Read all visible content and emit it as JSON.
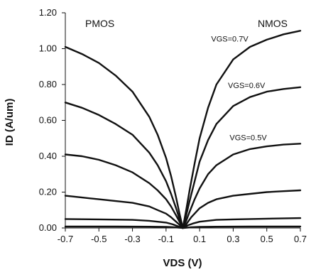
{
  "chart_data": {
    "type": "line",
    "title": "",
    "xlabel": "VDS (V)",
    "ylabel": "ID (A/um)",
    "xlim": [
      -0.7,
      0.7
    ],
    "ylim": [
      0,
      1.2
    ],
    "x_ticks": [
      "-0.7",
      "-0.5",
      "-0.3",
      "-0.1",
      "0.1",
      "0.3",
      "0.5",
      "0.7"
    ],
    "y_ticks": [
      "0.00",
      "0.20",
      "0.40",
      "0.60",
      "0.80",
      "1.00",
      "1.20"
    ],
    "grid": false,
    "corner_labels": {
      "left": "PMOS",
      "right": "NMOS"
    },
    "curve_labels": [
      {
        "text": "VGS=0.7V",
        "x": 0.39,
        "y": 1.04
      },
      {
        "text": "VGS=0.6V",
        "x": 0.49,
        "y": 0.78
      },
      {
        "text": "VGS=0.5V",
        "x": 0.5,
        "y": 0.49
      }
    ],
    "series": [
      {
        "x": [
          -0.7,
          -0.6,
          -0.5,
          -0.4,
          -0.3,
          -0.2,
          -0.15,
          -0.1,
          -0.07,
          -0.04,
          -0.02,
          0.0
        ],
        "values": [
          1.01,
          0.97,
          0.92,
          0.85,
          0.76,
          0.62,
          0.52,
          0.39,
          0.29,
          0.17,
          0.08,
          0.0
        ]
      },
      {
        "x": [
          -0.7,
          -0.6,
          -0.5,
          -0.4,
          -0.3,
          -0.2,
          -0.15,
          -0.1,
          -0.07,
          -0.04,
          -0.02,
          0.0
        ],
        "values": [
          0.7,
          0.67,
          0.63,
          0.58,
          0.52,
          0.42,
          0.35,
          0.26,
          0.19,
          0.11,
          0.05,
          0.0
        ]
      },
      {
        "x": [
          -0.7,
          -0.6,
          -0.5,
          -0.4,
          -0.3,
          -0.2,
          -0.15,
          -0.1,
          -0.07,
          -0.04,
          -0.02,
          0.0
        ],
        "values": [
          0.41,
          0.4,
          0.38,
          0.35,
          0.31,
          0.25,
          0.21,
          0.16,
          0.12,
          0.07,
          0.035,
          0.0
        ]
      },
      {
        "x": [
          -0.7,
          -0.6,
          -0.5,
          -0.4,
          -0.3,
          -0.2,
          -0.15,
          -0.1,
          -0.07,
          -0.04,
          -0.02,
          0.0
        ],
        "values": [
          0.18,
          0.17,
          0.16,
          0.15,
          0.14,
          0.12,
          0.1,
          0.08,
          0.06,
          0.035,
          0.018,
          0.0
        ]
      },
      {
        "x": [
          -0.7,
          -0.5,
          -0.3,
          -0.2,
          -0.1,
          -0.06,
          -0.03,
          0.0
        ],
        "values": [
          0.05,
          0.048,
          0.045,
          0.04,
          0.03,
          0.02,
          0.01,
          0.0
        ]
      },
      {
        "x": [
          -0.7,
          -0.4,
          -0.2,
          -0.1,
          -0.05,
          0.0
        ],
        "values": [
          0.008,
          0.008,
          0.007,
          0.006,
          0.004,
          0.0
        ]
      },
      {
        "x": [
          0.0,
          0.02,
          0.04,
          0.07,
          0.1,
          0.15,
          0.2,
          0.3,
          0.4,
          0.5,
          0.6,
          0.7
        ],
        "values": [
          0.0,
          0.1,
          0.21,
          0.36,
          0.5,
          0.67,
          0.8,
          0.94,
          1.01,
          1.05,
          1.08,
          1.1
        ]
      },
      {
        "x": [
          0.0,
          0.02,
          0.04,
          0.07,
          0.1,
          0.15,
          0.2,
          0.3,
          0.4,
          0.5,
          0.6,
          0.7
        ],
        "values": [
          0.0,
          0.07,
          0.15,
          0.26,
          0.37,
          0.49,
          0.58,
          0.68,
          0.73,
          0.76,
          0.775,
          0.785
        ]
      },
      {
        "x": [
          0.0,
          0.02,
          0.04,
          0.07,
          0.1,
          0.15,
          0.2,
          0.3,
          0.4,
          0.5,
          0.6,
          0.7
        ],
        "values": [
          0.0,
          0.04,
          0.09,
          0.16,
          0.22,
          0.3,
          0.35,
          0.41,
          0.44,
          0.455,
          0.465,
          0.47
        ]
      },
      {
        "x": [
          0.0,
          0.02,
          0.05,
          0.1,
          0.15,
          0.2,
          0.3,
          0.4,
          0.5,
          0.6,
          0.7
        ],
        "values": [
          0.0,
          0.02,
          0.06,
          0.11,
          0.14,
          0.16,
          0.18,
          0.19,
          0.2,
          0.205,
          0.21
        ]
      },
      {
        "x": [
          0.0,
          0.03,
          0.06,
          0.1,
          0.2,
          0.3,
          0.5,
          0.7
        ],
        "values": [
          0.0,
          0.015,
          0.025,
          0.035,
          0.045,
          0.048,
          0.052,
          0.055
        ]
      },
      {
        "x": [
          0.0,
          0.05,
          0.1,
          0.2,
          0.4,
          0.7
        ],
        "values": [
          0.0,
          0.004,
          0.006,
          0.007,
          0.008,
          0.008
        ]
      }
    ]
  }
}
